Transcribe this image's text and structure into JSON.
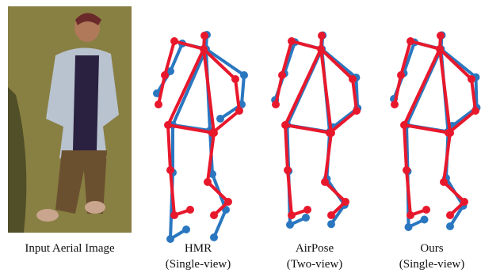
{
  "panels": [
    {
      "caption": "Input Aerial Image"
    },
    {
      "title": "HMR",
      "subtitle": "(Single-view)"
    },
    {
      "title": "AirPose",
      "subtitle": "(Two-view)"
    },
    {
      "title": "Ours",
      "subtitle": "(Single-view)"
    }
  ]
}
